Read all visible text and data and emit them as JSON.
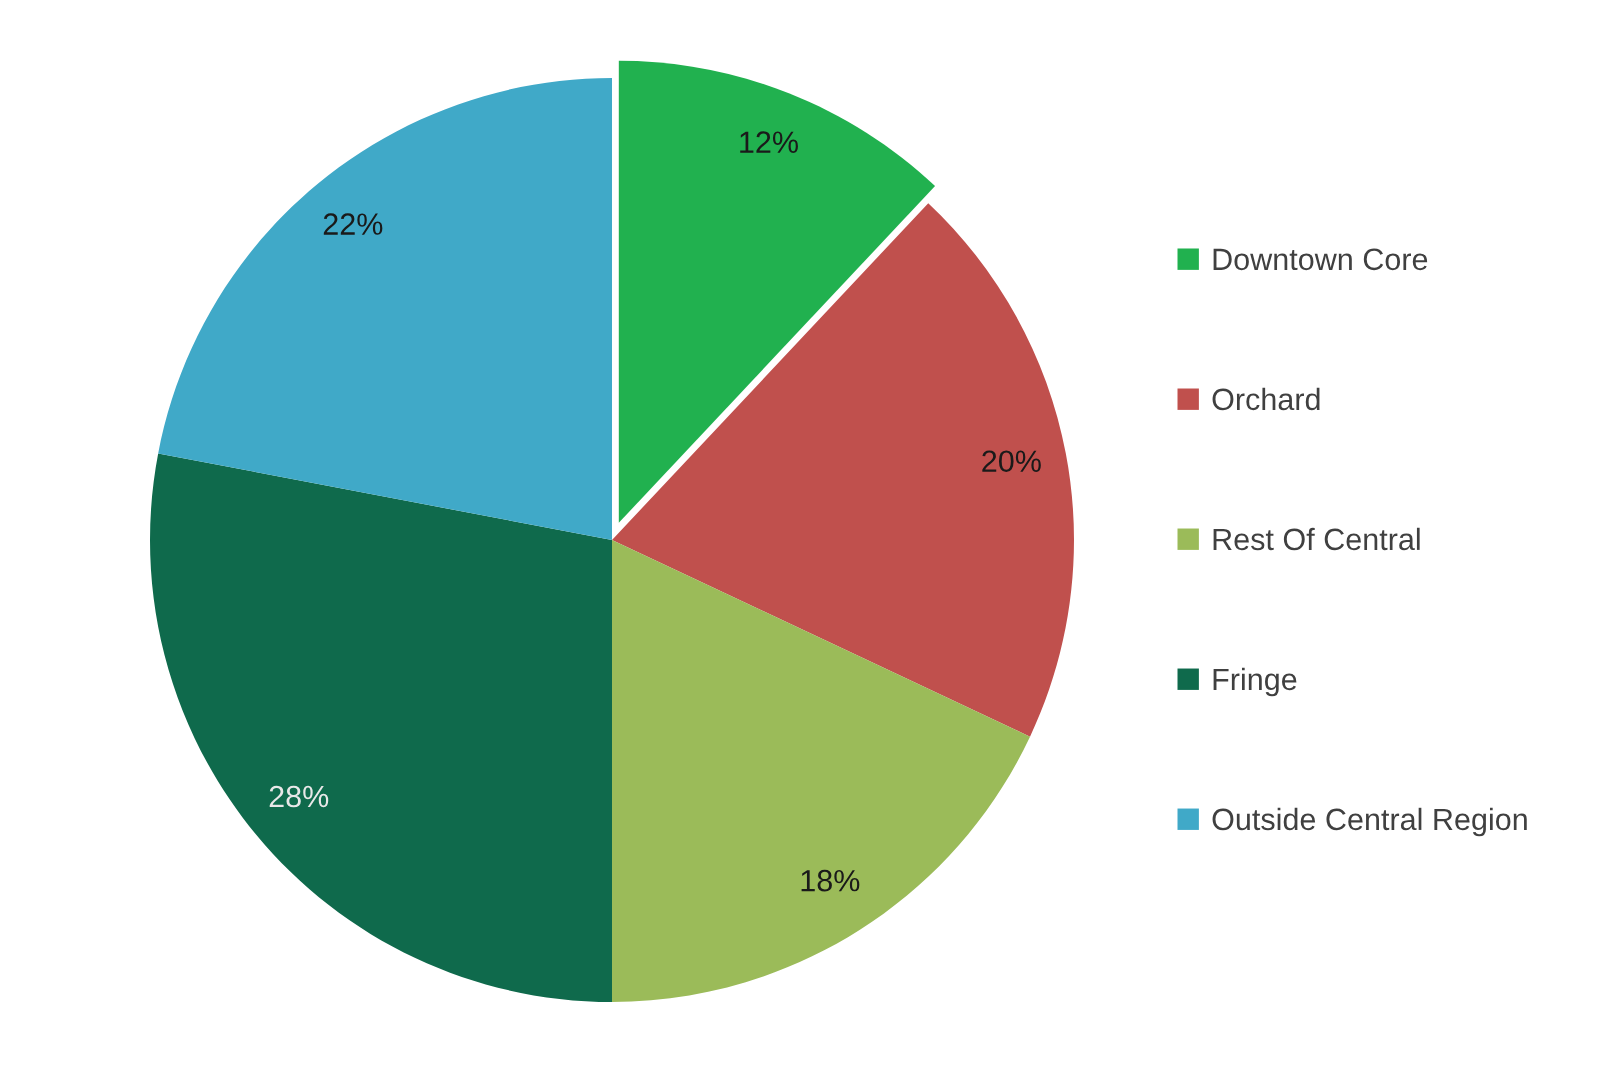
{
  "chart_data": {
    "type": "pie",
    "categories": [
      "Downtown Core",
      "Orchard",
      "Rest Of Central",
      "Fringe",
      "Outside Central Region"
    ],
    "values": [
      12,
      20,
      18,
      28,
      22
    ],
    "colors": [
      "#21b14f",
      "#c0504d",
      "#9bbb59",
      "#0f6a4c",
      "#40a9c8"
    ],
    "value_labels": [
      "12%",
      "20%",
      "18%",
      "28%",
      "22%"
    ],
    "legend": "right"
  }
}
